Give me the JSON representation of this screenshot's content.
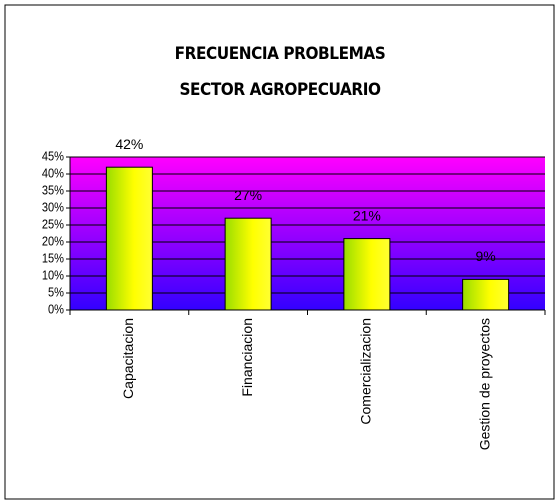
{
  "chart_data": {
    "type": "bar",
    "title": "FRECUENCIA PROBLEMAS SECTOR AGROPECUARIO",
    "categories": [
      "Capacitacion",
      "Financiacion",
      "Comercializacion",
      "Gestion de proyectos"
    ],
    "values": [
      42,
      27,
      21,
      9
    ],
    "value_labels": [
      "42%",
      "27%",
      "21%",
      "9%"
    ],
    "ylim": [
      0,
      45
    ],
    "yticks": [
      {
        "value": 0,
        "label": "0%"
      },
      {
        "value": 5,
        "label": "5%"
      },
      {
        "value": 10,
        "label": "10%"
      },
      {
        "value": 15,
        "label": "15%"
      },
      {
        "value": 20,
        "label": "20%"
      },
      {
        "value": 25,
        "label": "25%"
      },
      {
        "value": 30,
        "label": "30%"
      },
      {
        "value": 35,
        "label": "35%"
      },
      {
        "value": 40,
        "label": "40%"
      },
      {
        "value": 45,
        "label": "45%"
      }
    ],
    "grid": true
  }
}
